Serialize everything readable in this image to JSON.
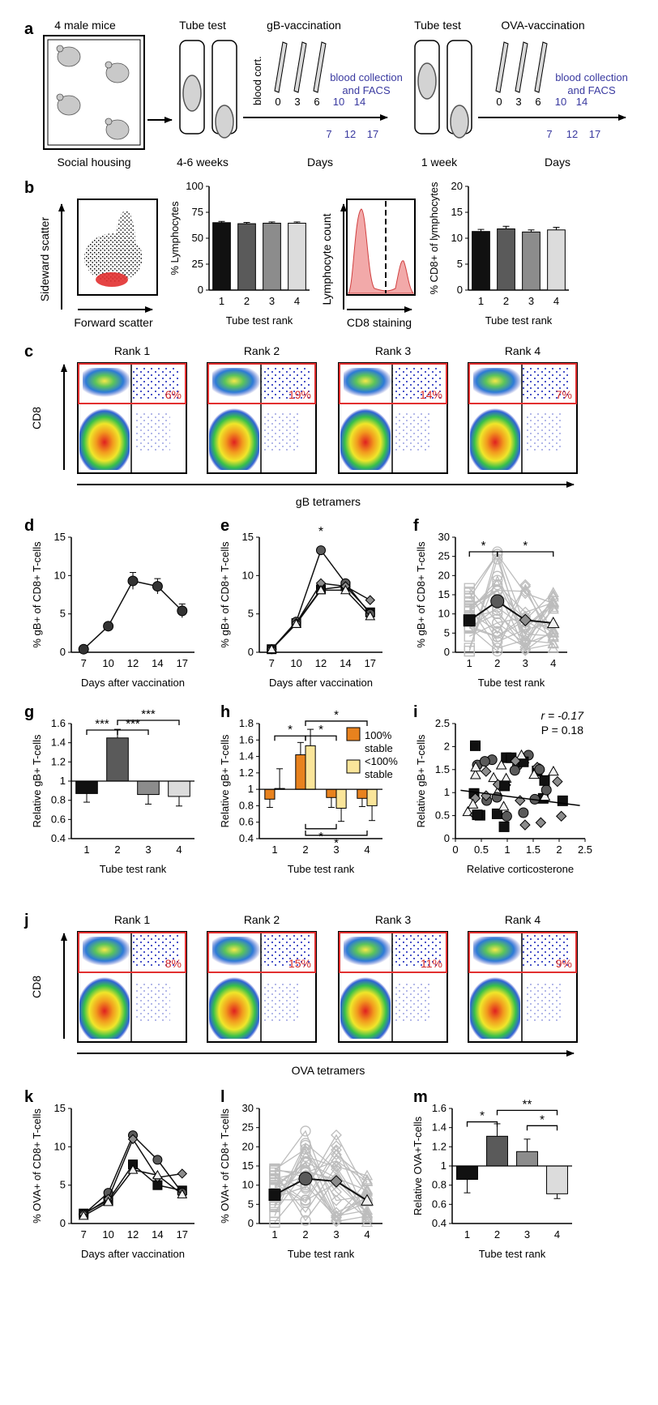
{
  "figure": {
    "panel_letters": [
      "a",
      "b",
      "c",
      "d",
      "e",
      "f",
      "g",
      "h",
      "i",
      "j",
      "k",
      "l",
      "m"
    ],
    "a": {
      "housing_label": "4 male mice",
      "social_label": "Social housing",
      "tube_test_1": "Tube test",
      "tube_duration_1": "4-6 weeks",
      "vacc_1": "gB-vaccination",
      "blood_cort": "blood cort.",
      "vacc_days": [
        "0",
        "3",
        "6"
      ],
      "collection_label_1": "blood collection",
      "collection_label_2": "and FACS",
      "collect_days_top": [
        "10",
        "14"
      ],
      "collect_days_bottom": [
        "7",
        "12",
        "17"
      ],
      "days_label": "Days",
      "tube_test_2": "Tube test",
      "tube_duration_2": "1 week",
      "vacc_2": "OVA-vaccination",
      "collection_color": "#3a3aa0"
    },
    "b": {
      "scatter_ylabel": "Sideward scatter",
      "scatter_xlabel": "Forward scatter",
      "histo_ylabel": "Lymphocyte count",
      "histo_xlabel": "CD8 staining",
      "gate_color": "#e23030"
    },
    "c": {
      "ranks": [
        "Rank 1",
        "Rank 2",
        "Rank 3",
        "Rank 4"
      ],
      "percents": [
        "6%",
        "19%",
        "14%",
        "7%"
      ],
      "ylabel": "CD8",
      "xlabel": "gB tetramers"
    },
    "j": {
      "ranks": [
        "Rank 1",
        "Rank 2",
        "Rank 3",
        "Rank 4"
      ],
      "percents": [
        "8%",
        "15%",
        "11%",
        "9%"
      ],
      "ylabel": "CD8",
      "xlabel": "OVA tetramers"
    },
    "i_annot": {
      "r": "r  = -0.17",
      "p": "P = 0.18"
    },
    "h_legend": [
      "100%",
      "stable",
      "<100%",
      "stable"
    ],
    "rank_colors": [
      "#111111",
      "#5a5a5a",
      "#8c8c8c",
      "#dcdcdc"
    ],
    "orange": "#e8821e",
    "yellow": "#fae59a"
  },
  "chart_data": [
    {
      "panel": "b1",
      "type": "bar",
      "categories": [
        "1",
        "2",
        "3",
        "4"
      ],
      "values": [
        65,
        64,
        64.5,
        64.5
      ],
      "errors": [
        1.2,
        1.2,
        1.2,
        1.2
      ],
      "ylabel": "% Lymphocytes",
      "xlabel": "Tube test rank",
      "ylim": [
        0,
        100
      ],
      "yticks": [
        "0",
        "25",
        "50",
        "75",
        "100"
      ]
    },
    {
      "panel": "b2",
      "type": "bar",
      "categories": [
        "1",
        "2",
        "3",
        "4"
      ],
      "values": [
        11.3,
        11.8,
        11.2,
        11.6
      ],
      "errors": [
        0.4,
        0.5,
        0.4,
        0.5
      ],
      "ylabel": "% CD8+ of lymphocytes",
      "xlabel": "Tube test rank",
      "ylim": [
        0,
        20
      ],
      "yticks": [
        "0",
        "5",
        "10",
        "15",
        "20"
      ]
    },
    {
      "panel": "d",
      "type": "line",
      "x": [
        "7",
        "10",
        "12",
        "14",
        "17"
      ],
      "series": [
        {
          "values": [
            0.4,
            3.4,
            9.3,
            8.6,
            5.4
          ],
          "errors": [
            0.2,
            0.5,
            1.1,
            1.0,
            0.9
          ]
        }
      ],
      "ylabel": "% gB+ of CD8+ T-cells",
      "xlabel": "Days after vaccination",
      "ylim": [
        0,
        15
      ],
      "yticks": [
        "0",
        "5",
        "10",
        "15"
      ]
    },
    {
      "panel": "e",
      "type": "line",
      "x": [
        "7",
        "10",
        "12",
        "14",
        "17"
      ],
      "series": [
        {
          "values": [
            0.4,
            3.8,
            8.2,
            8.6,
            5.2
          ]
        },
        {
          "values": [
            0.4,
            4.0,
            13.3,
            9.0,
            5.0
          ]
        },
        {
          "values": [
            0.4,
            3.8,
            9.0,
            8.6,
            6.8
          ]
        },
        {
          "values": [
            0.4,
            3.7,
            8.1,
            8.1,
            4.7
          ]
        }
      ],
      "ylabel": "% gB+ of CD8+ T-cells",
      "xlabel": "Days after vaccination",
      "ylim": [
        0,
        15
      ],
      "yticks": [
        "0",
        "5",
        "10",
        "15"
      ],
      "annotations": [
        "*"
      ]
    },
    {
      "panel": "f",
      "type": "scatter",
      "categories": [
        "1",
        "2",
        "3",
        "4"
      ],
      "means": [
        8.3,
        13.3,
        8.4,
        7.6
      ],
      "ylabel": "% gB+ of CD8+ T-cells",
      "xlabel": "Tube test rank",
      "ylim": [
        0,
        30
      ],
      "yticks": [
        "0",
        "5",
        "10",
        "15",
        "20",
        "25",
        "30"
      ],
      "annotations": [
        "*",
        "*"
      ]
    },
    {
      "panel": "g",
      "type": "bar",
      "categories": [
        "1",
        "2",
        "3",
        "4"
      ],
      "values": [
        0.87,
        1.45,
        0.86,
        0.84
      ],
      "errors": [
        0.09,
        0.09,
        0.1,
        0.1
      ],
      "ylabel": "Relative gB+ T-cells",
      "xlabel": "Tube test rank",
      "ylim": [
        0.4,
        1.6
      ],
      "baseline": 1,
      "yticks": [
        "0.4",
        "0.6",
        "0.8",
        "1",
        "1.2",
        "1.4",
        "1.6"
      ],
      "annotations": [
        "***",
        "***",
        "***"
      ]
    },
    {
      "panel": "h",
      "type": "bar",
      "categories": [
        "1",
        "2",
        "3",
        "4"
      ],
      "series": [
        {
          "name": "100% stable",
          "values": [
            0.88,
            1.42,
            0.9,
            0.89
          ],
          "errors": [
            0.1,
            0.15,
            0.12,
            0.1
          ]
        },
        {
          "name": "<100% stable",
          "values": [
            1.01,
            1.53,
            0.77,
            0.8
          ],
          "errors": [
            0.24,
            0.2,
            0.16,
            0.18
          ]
        }
      ],
      "ylabel": "Relative gB+ T-cells",
      "xlabel": "Tube test rank",
      "ylim": [
        0.4,
        1.8
      ],
      "baseline": 1,
      "yticks": [
        "0.4",
        "0.6",
        "0.8",
        "1",
        "1.2",
        "1.4",
        "1.6",
        "1.8"
      ],
      "annotations": [
        "*",
        "*",
        "*",
        "*",
        "*"
      ]
    },
    {
      "panel": "i",
      "type": "scatter",
      "ylabel": "Relative gB+ T-cells",
      "xlabel": "Relative corticosterone",
      "xlim": [
        0,
        2.5
      ],
      "ylim": [
        0,
        2.5
      ],
      "xticks": [
        "0",
        "0.5",
        "1",
        "1.5",
        "2",
        "2.5"
      ],
      "yticks": [
        "0",
        "0.5",
        "1",
        "1.5",
        "2",
        "2.5"
      ]
    },
    {
      "panel": "k",
      "type": "line",
      "x": [
        "7",
        "10",
        "12",
        "14",
        "17"
      ],
      "series": [
        {
          "values": [
            1.3,
            3.0,
            7.7,
            5.0,
            4.3
          ]
        },
        {
          "values": [
            1.2,
            4.0,
            11.5,
            8.3,
            4.0
          ]
        },
        {
          "values": [
            1.2,
            3.2,
            11.0,
            6.0,
            6.5
          ]
        },
        {
          "values": [
            1.0,
            2.8,
            7.0,
            6.3,
            3.8
          ]
        }
      ],
      "ylabel": "% OVA+ of CD8+ T-cells",
      "xlabel": "Days after vaccination",
      "ylim": [
        0,
        15
      ],
      "yticks": [
        "0",
        "5",
        "10",
        "15"
      ]
    },
    {
      "panel": "l",
      "type": "scatter",
      "categories": [
        "1",
        "2",
        "3",
        "4"
      ],
      "means": [
        7.5,
        11.7,
        11.0,
        6.0
      ],
      "ylabel": "% OVA+ of CD8+ T-cells",
      "xlabel": "Tube test rank",
      "ylim": [
        0,
        30
      ],
      "yticks": [
        "0",
        "5",
        "10",
        "15",
        "20",
        "25",
        "30"
      ]
    },
    {
      "panel": "m",
      "type": "bar",
      "categories": [
        "1",
        "2",
        "3",
        "4"
      ],
      "values": [
        0.86,
        1.31,
        1.15,
        0.71
      ],
      "errors": [
        0.14,
        0.13,
        0.13,
        0.05
      ],
      "ylabel": "Relative OVA+T-cells",
      "xlabel": "Tube test rank",
      "ylim": [
        0.4,
        1.6
      ],
      "baseline": 1,
      "yticks": [
        "0.4",
        "0.6",
        "0.8",
        "1",
        "1.2",
        "1.4",
        "1.6"
      ],
      "annotations": [
        "*",
        "**",
        "*"
      ]
    }
  ]
}
